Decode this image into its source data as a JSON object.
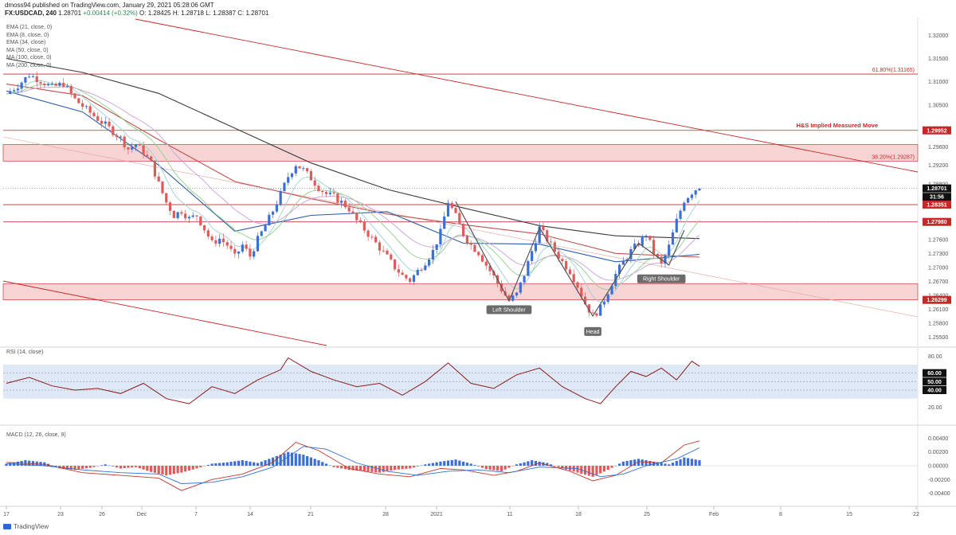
{
  "header": {
    "line1": "dmoss94 published on TradingView.com, January 29, 2021 05:28:06 GMT",
    "symbol": "FX:USDCAD, 240",
    "price": "1.28701",
    "change": "+0.00414 (+0.32%)",
    "ohlc": "O: 1.28425  H: 1.28718  L: 1.28387  C: 1.28701"
  },
  "legend": [
    "EMA (21, close, 0)",
    "EMA (8, close, 0)",
    "EMA (34, close)",
    "MA (50, close, 0)",
    "MA (100, close, 0)",
    "MA (200, close, 0)"
  ],
  "footer": {
    "brand": "TradingView"
  },
  "colors": {
    "bull": "#3b6fd6",
    "bear": "#e05a5a",
    "resistance": "#c62828",
    "zone": "#f4c9c9",
    "rsi_band": "#dfe8f6",
    "rsi_line": "#8b1a1a",
    "ma200": "#3a3a3a",
    "ma100": "#c0504d",
    "ma50": "#2d5ca8"
  },
  "chart_data": [
    {
      "type": "candlestick",
      "symbol": "FX:USDCAD",
      "timeframe": "240",
      "x_ticks": [
        "17",
        "23",
        "26",
        "Dec",
        "7",
        "14",
        "21",
        "28",
        "2021",
        "11",
        "18",
        "25",
        "Feb",
        "8",
        "15",
        "22"
      ],
      "y_ticks": [
        "1.32000",
        "1.31500",
        "1.31000",
        "1.30500",
        "1.30000",
        "1.29600",
        "1.29200",
        "1.28800",
        "1.28400",
        "1.28000",
        "1.27600",
        "1.27300",
        "1.27000",
        "1.26700",
        "1.26400",
        "1.26100",
        "1.25800",
        "1.25500"
      ],
      "ylim": [
        1.2535,
        1.3235
      ],
      "price_labels": [
        {
          "text": "1.29952",
          "value": 1.29952
        },
        {
          "text": "1.28701",
          "value": 1.28701
        },
        {
          "text": "31:56",
          "value": 1.2852
        },
        {
          "text": "1.28351",
          "value": 1.28351
        },
        {
          "text": "1.27980",
          "value": 1.2798
        },
        {
          "text": "1.26299",
          "value": 1.26299
        }
      ],
      "horizontal_levels": [
        1.31165,
        1.29952,
        1.28351,
        1.2798
      ],
      "zones": [
        [
          1.29287,
          1.2965
        ],
        [
          1.26299,
          1.2665
        ]
      ],
      "annotations": [
        {
          "text": "61.80%(1.31165)",
          "value": 1.31165
        },
        {
          "text": "H&S Implied Measured Move",
          "value": 1.29952
        },
        {
          "text": "38.20%(1.29287)",
          "value": 1.29287
        },
        {
          "text": "Left Shoulder",
          "value": 1.2625
        },
        {
          "text": "Head",
          "value": 1.2585
        },
        {
          "text": "Right Shoulder",
          "value": 1.2695
        }
      ],
      "price_path": [
        [
          0,
          1.3074
        ],
        [
          3,
          1.3092
        ],
        [
          6,
          1.3115
        ],
        [
          9,
          1.3102
        ],
        [
          12,
          1.3088
        ],
        [
          15,
          1.3096
        ],
        [
          18,
          1.3062
        ],
        [
          21,
          1.304
        ],
        [
          24,
          1.302
        ],
        [
          27,
          1.3
        ],
        [
          30,
          1.2978
        ],
        [
          32,
          1.2955
        ],
        [
          34,
          1.2965
        ],
        [
          36,
          1.2948
        ],
        [
          38,
          1.2925
        ],
        [
          40,
          1.288
        ],
        [
          42,
          1.284
        ],
        [
          44,
          1.2812
        ],
        [
          46,
          1.2822
        ],
        [
          48,
          1.2805
        ],
        [
          50,
          1.2812
        ],
        [
          52,
          1.2783
        ],
        [
          54,
          1.2752
        ],
        [
          56,
          1.2762
        ],
        [
          58,
          1.2748
        ],
        [
          60,
          1.2722
        ],
        [
          62,
          1.2748
        ],
        [
          64,
          1.2724
        ],
        [
          66,
          1.276
        ],
        [
          68,
          1.279
        ],
        [
          70,
          1.2822
        ],
        [
          72,
          1.2858
        ],
        [
          74,
          1.2896
        ],
        [
          76,
          1.2922
        ],
        [
          78,
          1.291
        ],
        [
          80,
          1.2892
        ],
        [
          82,
          1.2872
        ],
        [
          84,
          1.2858
        ],
        [
          86,
          1.2852
        ],
        [
          88,
          1.284
        ],
        [
          90,
          1.2826
        ],
        [
          92,
          1.28
        ],
        [
          94,
          1.2782
        ],
        [
          96,
          1.2762
        ],
        [
          98,
          1.2742
        ],
        [
          100,
          1.2722
        ],
        [
          102,
          1.27
        ],
        [
          104,
          1.2682
        ],
        [
          106,
          1.2672
        ],
        [
          108,
          1.2692
        ],
        [
          110,
          1.2712
        ],
        [
          112,
          1.2735
        ],
        [
          114,
          1.2775
        ],
        [
          116,
          1.2842
        ],
        [
          118,
          1.281
        ],
        [
          120,
          1.2772
        ],
        [
          122,
          1.2748
        ],
        [
          124,
          1.2732
        ],
        [
          126,
          1.2705
        ],
        [
          128,
          1.268
        ],
        [
          130,
          1.2652
        ],
        [
          132,
          1.2628
        ],
        [
          134,
          1.2642
        ],
        [
          136,
          1.2685
        ],
        [
          138,
          1.2735
        ],
        [
          140,
          1.2785
        ],
        [
          142,
          1.276
        ],
        [
          144,
          1.2735
        ],
        [
          146,
          1.2712
        ],
        [
          148,
          1.2692
        ],
        [
          150,
          1.266
        ],
        [
          152,
          1.2622
        ],
        [
          154,
          1.2595
        ],
        [
          156,
          1.2612
        ],
        [
          158,
          1.2648
        ],
        [
          160,
          1.2685
        ],
        [
          162,
          1.2712
        ],
        [
          164,
          1.2735
        ],
        [
          166,
          1.2752
        ],
        [
          168,
          1.2772
        ],
        [
          170,
          1.2732
        ],
        [
          172,
          1.2705
        ],
        [
          174,
          1.2745
        ],
        [
          176,
          1.28
        ],
        [
          178,
          1.2845
        ],
        [
          180,
          1.2862
        ],
        [
          182,
          1.2875
        ]
      ],
      "moving_averages": {
        "ma200": [
          [
            0,
            1.315
          ],
          [
            20,
            1.312
          ],
          [
            40,
            1.3075
          ],
          [
            60,
            1.3
          ],
          [
            80,
            1.2925
          ],
          [
            100,
            1.2868
          ],
          [
            120,
            1.2828
          ],
          [
            140,
            1.279
          ],
          [
            160,
            1.2768
          ],
          [
            182,
            1.2762
          ]
        ],
        "ma100": [
          [
            0,
            1.3095
          ],
          [
            20,
            1.307
          ],
          [
            40,
            1.2975
          ],
          [
            60,
            1.2885
          ],
          [
            80,
            1.2848
          ],
          [
            100,
            1.2815
          ],
          [
            120,
            1.2792
          ],
          [
            140,
            1.2772
          ],
          [
            160,
            1.273
          ],
          [
            182,
            1.2722
          ]
        ],
        "ma50": [
          [
            0,
            1.308
          ],
          [
            20,
            1.3035
          ],
          [
            40,
            1.292
          ],
          [
            60,
            1.2778
          ],
          [
            80,
            1.2812
          ],
          [
            100,
            1.282
          ],
          [
            120,
            1.2752
          ],
          [
            140,
            1.275
          ],
          [
            160,
            1.2712
          ],
          [
            182,
            1.2728
          ]
        ]
      }
    },
    {
      "type": "line",
      "title": "RSI (14, close)",
      "y_ticks": [
        "80.00",
        "20.00"
      ],
      "highlighted_levels": [
        "60.00",
        "50.00",
        "40.00"
      ],
      "ylim": [
        10,
        85
      ],
      "band": [
        30,
        70
      ],
      "series": [
        {
          "values": [
            [
              0,
              48
            ],
            [
              6,
              55
            ],
            [
              12,
              45
            ],
            [
              18,
              40
            ],
            [
              24,
              42
            ],
            [
              30,
              36
            ],
            [
              36,
              48
            ],
            [
              42,
              30
            ],
            [
              48,
              24
            ],
            [
              54,
              44
            ],
            [
              60,
              36
            ],
            [
              66,
              52
            ],
            [
              72,
              64
            ],
            [
              74,
              78
            ],
            [
              80,
              62
            ],
            [
              86,
              52
            ],
            [
              92,
              44
            ],
            [
              98,
              48
            ],
            [
              104,
              34
            ],
            [
              110,
              50
            ],
            [
              116,
              72
            ],
            [
              122,
              48
            ],
            [
              128,
              42
            ],
            [
              134,
              58
            ],
            [
              140,
              66
            ],
            [
              146,
              44
            ],
            [
              152,
              30
            ],
            [
              156,
              24
            ],
            [
              160,
              44
            ],
            [
              164,
              62
            ],
            [
              168,
              56
            ],
            [
              172,
              66
            ],
            [
              176,
              52
            ],
            [
              180,
              74
            ],
            [
              182,
              68
            ]
          ]
        }
      ]
    },
    {
      "type": "histogram+line",
      "title": "MACD (12, 26, close, 9)",
      "y_ticks": [
        "0.00400",
        "0.00200",
        "0.00000",
        "-0.00200",
        "-0.00400"
      ],
      "ylim": [
        -0.0052,
        0.0052
      ],
      "histogram": [
        [
          0,
          0.0003
        ],
        [
          5,
          0.0008
        ],
        [
          10,
          0.0005
        ],
        [
          14,
          -0.0004
        ],
        [
          18,
          -0.0006
        ],
        [
          22,
          -0.0003
        ],
        [
          26,
          0.0002
        ],
        [
          30,
          -0.0004
        ],
        [
          34,
          -0.0002
        ],
        [
          38,
          -0.0009
        ],
        [
          42,
          -0.0014
        ],
        [
          46,
          -0.001
        ],
        [
          50,
          -0.0004
        ],
        [
          54,
          0.0003
        ],
        [
          58,
          0.0005
        ],
        [
          62,
          0.0008
        ],
        [
          66,
          0.0004
        ],
        [
          70,
          0.0012
        ],
        [
          74,
          0.002
        ],
        [
          78,
          0.0016
        ],
        [
          82,
          0.0008
        ],
        [
          86,
          -0.0002
        ],
        [
          90,
          -0.0006
        ],
        [
          94,
          -0.0008
        ],
        [
          98,
          -0.001
        ],
        [
          102,
          -0.0006
        ],
        [
          106,
          -0.0004
        ],
        [
          110,
          0.0002
        ],
        [
          114,
          0.0006
        ],
        [
          118,
          0.0009
        ],
        [
          122,
          0.0003
        ],
        [
          126,
          -0.0005
        ],
        [
          130,
          -0.0008
        ],
        [
          134,
          0.0002
        ],
        [
          138,
          0.0008
        ],
        [
          142,
          0.0004
        ],
        [
          146,
          -0.0004
        ],
        [
          150,
          -0.001
        ],
        [
          154,
          -0.0016
        ],
        [
          158,
          -0.0006
        ],
        [
          162,
          0.0006
        ],
        [
          166,
          0.001
        ],
        [
          170,
          0.0006
        ],
        [
          174,
          0.0002
        ],
        [
          178,
          0.0012
        ],
        [
          182,
          0.0008
        ]
      ],
      "series": [
        {
          "values": [
            [
              0,
              0.0005
            ],
            [
              10,
              0.0002
            ],
            [
              20,
              -0.001
            ],
            [
              30,
              -0.0014
            ],
            [
              40,
              -0.0018
            ],
            [
              46,
              -0.0036
            ],
            [
              54,
              -0.002
            ],
            [
              62,
              -0.0012
            ],
            [
              70,
              0.0005
            ],
            [
              76,
              0.0034
            ],
            [
              82,
              0.0022
            ],
            [
              90,
              -0.0004
            ],
            [
              98,
              -0.0012
            ],
            [
              106,
              -0.0016
            ],
            [
              114,
              -0.0004
            ],
            [
              120,
              -0.0006
            ],
            [
              128,
              -0.0014
            ],
            [
              134,
              -0.0008
            ],
            [
              140,
              0.0004
            ],
            [
              148,
              -0.0008
            ],
            [
              154,
              -0.0022
            ],
            [
              160,
              -0.0014
            ],
            [
              166,
              0.0006
            ],
            [
              172,
              0.0004
            ],
            [
              178,
              0.003
            ],
            [
              182,
              0.0036
            ]
          ]
        },
        {
          "values": [
            [
              0,
              0.0003
            ],
            [
              10,
              0.0
            ],
            [
              20,
              -0.0006
            ],
            [
              30,
              -0.001
            ],
            [
              40,
              -0.0012
            ],
            [
              46,
              -0.0026
            ],
            [
              54,
              -0.0024
            ],
            [
              62,
              -0.0016
            ],
            [
              70,
              -0.0002
            ],
            [
              78,
              0.0028
            ],
            [
              84,
              0.0024
            ],
            [
              92,
              0.0004
            ],
            [
              100,
              -0.0008
            ],
            [
              108,
              -0.0014
            ],
            [
              116,
              -0.0008
            ],
            [
              124,
              -0.0006
            ],
            [
              132,
              -0.001
            ],
            [
              140,
              -0.0002
            ],
            [
              150,
              -0.0004
            ],
            [
              156,
              -0.0016
            ],
            [
              162,
              -0.0012
            ],
            [
              168,
              0.0
            ],
            [
              176,
              0.001
            ],
            [
              182,
              0.0026
            ]
          ]
        }
      ]
    }
  ]
}
